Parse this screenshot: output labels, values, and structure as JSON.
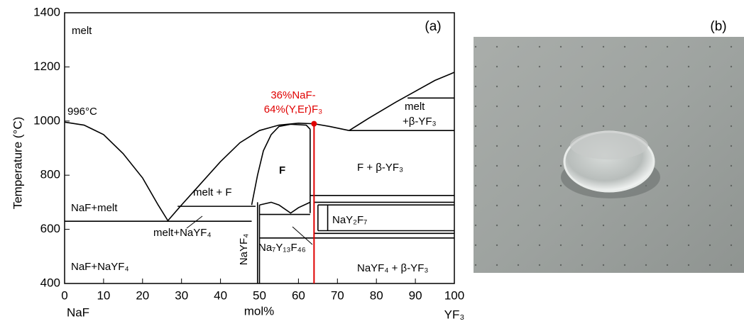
{
  "chart_data": {
    "type": "line",
    "panel_a": "(a)",
    "panel_b": "(b)",
    "x_label": "mol%",
    "y_label": "Temperature (°C)",
    "x_left_label": "NaF",
    "x_right_label": "YF₃",
    "xlim": [
      0,
      100
    ],
    "ylim": [
      400,
      1400
    ],
    "xticks": [
      0,
      10,
      20,
      30,
      40,
      50,
      60,
      70,
      80,
      90,
      100
    ],
    "yticks": [
      400,
      600,
      800,
      1000,
      1200,
      1400
    ],
    "color": "#000000",
    "boundaries": [
      {
        "x": [
          0,
          5,
          10,
          15,
          20,
          24,
          26.5
        ],
        "y": [
          996,
          985,
          950,
          880,
          790,
          690,
          632
        ]
      },
      {
        "x": [
          26.5,
          30,
          35,
          40,
          45,
          50,
          55,
          60,
          64,
          68,
          73
        ],
        "y": [
          632,
          690,
          770,
          850,
          920,
          965,
          985,
          992,
          990,
          980,
          965
        ]
      },
      {
        "x": [
          73,
          78,
          85,
          90,
          95,
          100
        ],
        "y": [
          965,
          1010,
          1070,
          1110,
          1150,
          1180
        ]
      },
      {
        "x": [
          48,
          49.5,
          51,
          53,
          55,
          58,
          62,
          63
        ],
        "y": [
          690,
          800,
          890,
          950,
          980,
          988,
          985,
          970
        ]
      },
      {
        "x": [
          63,
          63
        ],
        "y": [
          970,
          660
        ]
      },
      {
        "x": [
          73,
          100
        ],
        "y": [
          965,
          965
        ]
      },
      {
        "x": [
          88,
          100
        ],
        "y": [
          1085,
          1085
        ]
      },
      {
        "x": [
          0,
          48
        ],
        "y": [
          630,
          630
        ]
      },
      {
        "x": [
          29,
          49
        ],
        "y": [
          685,
          685
        ]
      },
      {
        "x": [
          49.5,
          49.5
        ],
        "y": [
          400,
          700
        ]
      },
      {
        "x": [
          50,
          50
        ],
        "y": [
          400,
          690
        ]
      },
      {
        "x": [
          50,
          53,
          55,
          58,
          60,
          63
        ],
        "y": [
          690,
          700,
          690,
          660,
          680,
          700
        ]
      },
      {
        "x": [
          50,
          63
        ],
        "y": [
          655,
          655
        ]
      },
      {
        "x": [
          63,
          100
        ],
        "y": [
          725,
          725
        ]
      },
      {
        "x": [
          64,
          100
        ],
        "y": [
          700,
          700
        ]
      },
      {
        "x": [
          65,
          100
        ],
        "y": [
          690,
          690
        ]
      },
      {
        "x": [
          65,
          100
        ],
        "y": [
          595,
          595
        ]
      },
      {
        "x": [
          67.5,
          67.5
        ],
        "y": [
          690,
          595
        ]
      },
      {
        "x": [
          65,
          65
        ],
        "y": [
          690,
          595
        ]
      },
      {
        "x": [
          64,
          100
        ],
        "y": [
          585,
          585
        ]
      },
      {
        "x": [
          50,
          100
        ],
        "y": [
          568,
          568
        ]
      }
    ],
    "composition": {
      "label_1": "36%NaF-",
      "label_2": "64%(Y,Er)F₃",
      "x": 64,
      "T": 990,
      "color": "#e00000"
    },
    "regions": [
      "melt",
      "996°C",
      "melt",
      "+β-YF₃",
      "F",
      "F + β-YF₃",
      "melt + F",
      "NaF+melt",
      "melt+NaYF₄",
      "NaY₂F₇",
      "NaYF₄",
      "Na₇Y₁₃F₄₆",
      "NaF+NaYF₄",
      "NaYF₄ + β-YF₃"
    ]
  }
}
